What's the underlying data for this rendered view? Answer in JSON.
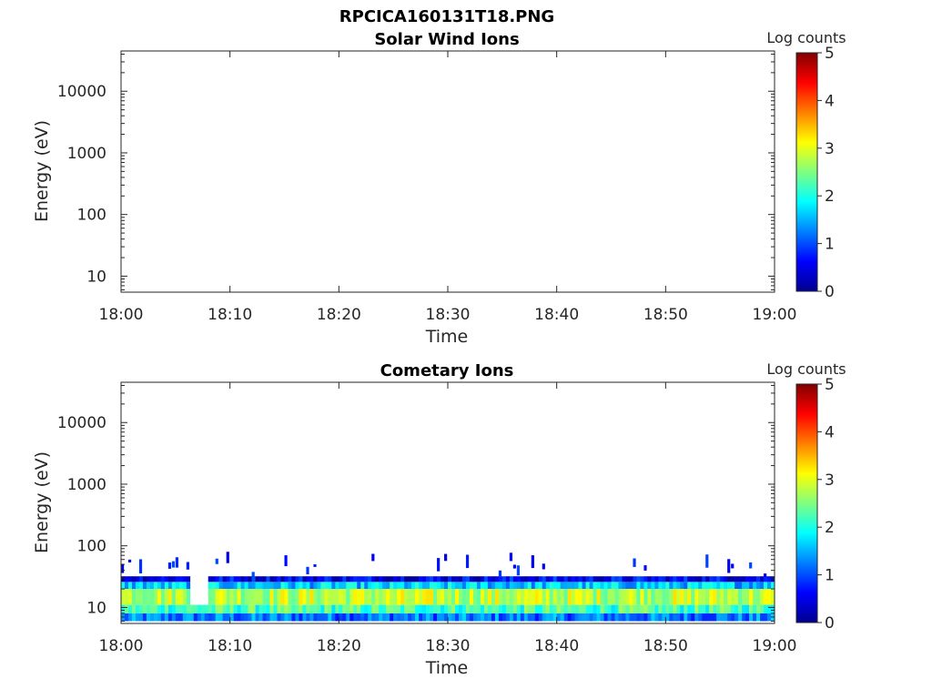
{
  "figure": {
    "title": "RPCICA160131T18.PNG"
  },
  "colors": {
    "colormap": "jet",
    "axes": "#262626",
    "background": "#ffffff"
  },
  "chart_data": [
    {
      "type": "heatmap",
      "title": "Solar Wind Ions",
      "xlabel": "Time",
      "ylabel": "Energy (eV)",
      "x_tick_labels": [
        "18:00",
        "18:10",
        "18:20",
        "18:30",
        "18:40",
        "18:50",
        "19:00"
      ],
      "y_tick_labels": [
        "10",
        "100",
        "1000",
        "10000"
      ],
      "y_scale": "log",
      "ylim": [
        5.5,
        45000
      ],
      "xlim": [
        "18:00",
        "19:00"
      ],
      "colorbar": {
        "label": "Log counts",
        "ticks": [
          "0",
          "1",
          "2",
          "3",
          "4",
          "5"
        ],
        "range": [
          0,
          5
        ]
      },
      "data_summary": "empty – no counts above threshold",
      "bands": []
    },
    {
      "type": "heatmap",
      "title": "Cometary Ions",
      "xlabel": "Time",
      "ylabel": "Energy (eV)",
      "x_tick_labels": [
        "18:00",
        "18:10",
        "18:20",
        "18:30",
        "18:40",
        "18:50",
        "19:00"
      ],
      "y_tick_labels": [
        "10",
        "100",
        "1000",
        "10000"
      ],
      "y_scale": "log",
      "ylim": [
        5.5,
        45000
      ],
      "xlim": [
        "18:00",
        "19:00"
      ],
      "colorbar": {
        "label": "Log counts",
        "ticks": [
          "0",
          "1",
          "2",
          "3",
          "4",
          "5"
        ],
        "range": [
          0,
          5
        ]
      },
      "data_summary": "persistent low-energy band ~6-30 eV, peak log counts ~3 around 12-20 eV; sporadic low counts up to ~80 eV",
      "bands": [
        {
          "energy_range_eV": [
            6,
            8
          ],
          "log_counts": 1.2
        },
        {
          "energy_range_eV": [
            8,
            11
          ],
          "log_counts": 2.2
        },
        {
          "energy_range_eV": [
            11,
            20
          ],
          "log_counts": 2.8
        },
        {
          "energy_range_eV": [
            20,
            26
          ],
          "log_counts": 1.6
        },
        {
          "energy_range_eV": [
            26,
            32
          ],
          "log_counts": 0.6
        }
      ],
      "sporadic_high_energy_eV": [
        30,
        80
      ]
    }
  ]
}
